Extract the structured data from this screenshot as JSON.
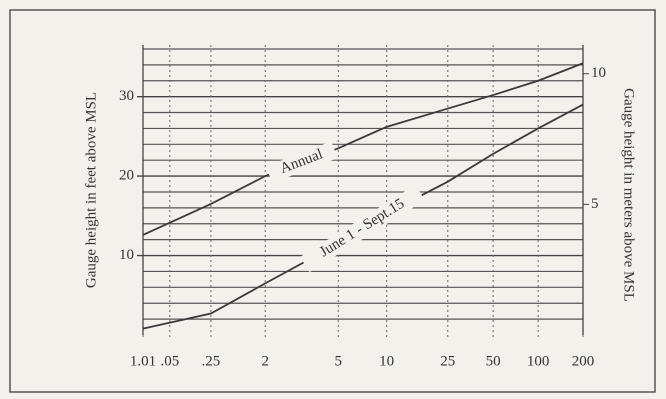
{
  "chart_data": {
    "type": "line",
    "y_label": "Gauge height in feet above MSL",
    "y2_label": "Gauge height in meters above MSL",
    "x_scale": "gumbel",
    "x": [
      1.01,
      1.25,
      2,
      5,
      10,
      25,
      50,
      100,
      200
    ],
    "xlim": [
      1.01,
      200
    ],
    "xticks": [
      1.01,
      {
        "value": 1.05,
        "label": ".05"
      },
      {
        "value": 1.25,
        "label": ".25"
      },
      2,
      5,
      10,
      25,
      50,
      100,
      200
    ],
    "ylim": [
      0,
      36.5
    ],
    "yticks": [
      10,
      20,
      30
    ],
    "y_minor_ticks": [
      2,
      4,
      6,
      8,
      12,
      14,
      16,
      18,
      22,
      24,
      26,
      28,
      32,
      34,
      36
    ],
    "y2lim": [
      0,
      11.1
    ],
    "y2ticks": [
      5,
      10
    ],
    "grid": true,
    "series": [
      {
        "name": "Annual",
        "color": "#3a3a3a",
        "values": [
          12.6,
          16.5,
          20,
          23.5,
          26.2,
          28.5,
          30.2,
          32,
          34.2
        ]
      },
      {
        "name": "June 1 - Sept.15",
        "color": "#3a3a3a",
        "values": [
          0.8,
          2.7,
          6.5,
          11.5,
          15.3,
          19.3,
          22.8,
          26,
          29
        ]
      }
    ]
  }
}
